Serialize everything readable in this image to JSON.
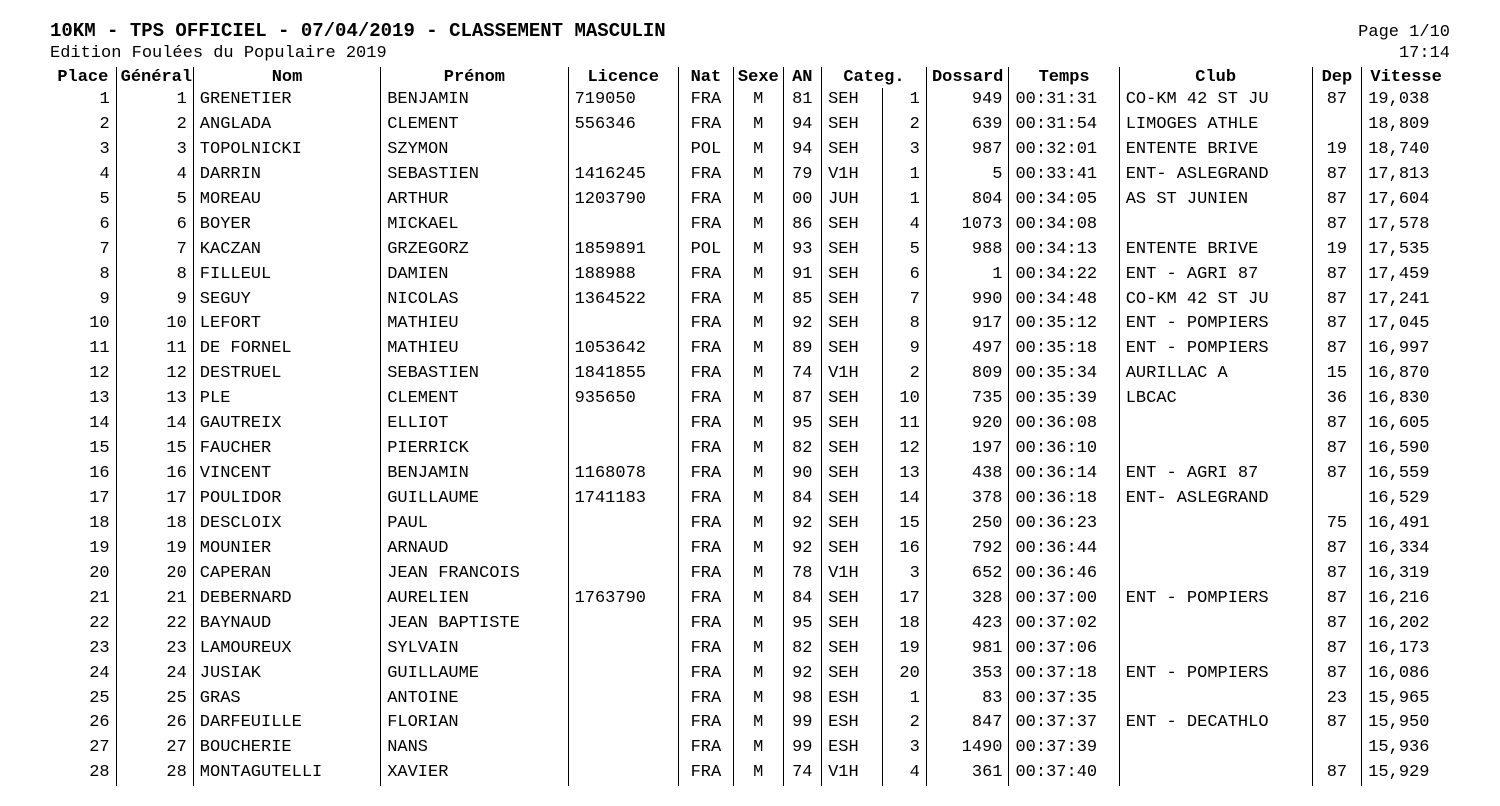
{
  "header": {
    "title": "10KM - TPS OFFICIEL - 07/04/2019 - CLASSEMENT MASCULIN",
    "subtitle": "Edition Foulées du Populaire 2019",
    "page": "Page 1/10",
    "time": "17:14"
  },
  "columns": [
    "Place",
    "Général",
    "Nom",
    "Prénom",
    "Licence",
    "Nat",
    "Sexe",
    "AN",
    "Categ.",
    "",
    "Dossard",
    "Temps",
    "Club",
    "Dep",
    "Vitesse"
  ],
  "rows": [
    {
      "place": 1,
      "general": 1,
      "nom": "GRENETIER",
      "prenom": "BENJAMIN",
      "licence": "719050",
      "nat": "FRA",
      "sexe": "M",
      "an": "81",
      "categ": "SEH",
      "catrank": 1,
      "dossard": 949,
      "temps": "00:31:31",
      "club": "CO-KM 42 ST JU",
      "dep": "87",
      "vitesse": "19,038"
    },
    {
      "place": 2,
      "general": 2,
      "nom": "ANGLADA",
      "prenom": "CLEMENT",
      "licence": "556346",
      "nat": "FRA",
      "sexe": "M",
      "an": "94",
      "categ": "SEH",
      "catrank": 2,
      "dossard": 639,
      "temps": "00:31:54",
      "club": "LIMOGES ATHLE",
      "dep": "",
      "vitesse": "18,809"
    },
    {
      "place": 3,
      "general": 3,
      "nom": "TOPOLNICKI",
      "prenom": "SZYMON",
      "licence": "",
      "nat": "POL",
      "sexe": "M",
      "an": "94",
      "categ": "SEH",
      "catrank": 3,
      "dossard": 987,
      "temps": "00:32:01",
      "club": "ENTENTE BRIVE",
      "dep": "19",
      "vitesse": "18,740"
    },
    {
      "place": 4,
      "general": 4,
      "nom": "DARRIN",
      "prenom": "SEBASTIEN",
      "licence": "1416245",
      "nat": "FRA",
      "sexe": "M",
      "an": "79",
      "categ": "V1H",
      "catrank": 1,
      "dossard": 5,
      "temps": "00:33:41",
      "club": "ENT- ASLEGRAND",
      "dep": "87",
      "vitesse": "17,813"
    },
    {
      "place": 5,
      "general": 5,
      "nom": "MOREAU",
      "prenom": "ARTHUR",
      "licence": "1203790",
      "nat": "FRA",
      "sexe": "M",
      "an": "00",
      "categ": "JUH",
      "catrank": 1,
      "dossard": 804,
      "temps": "00:34:05",
      "club": "AS ST JUNIEN",
      "dep": "87",
      "vitesse": "17,604"
    },
    {
      "place": 6,
      "general": 6,
      "nom": "BOYER",
      "prenom": "MICKAEL",
      "licence": "",
      "nat": "FRA",
      "sexe": "M",
      "an": "86",
      "categ": "SEH",
      "catrank": 4,
      "dossard": 1073,
      "temps": "00:34:08",
      "club": "",
      "dep": "87",
      "vitesse": "17,578"
    },
    {
      "place": 7,
      "general": 7,
      "nom": "KACZAN",
      "prenom": "GRZEGORZ",
      "licence": "1859891",
      "nat": "POL",
      "sexe": "M",
      "an": "93",
      "categ": "SEH",
      "catrank": 5,
      "dossard": 988,
      "temps": "00:34:13",
      "club": "ENTENTE BRIVE",
      "dep": "19",
      "vitesse": "17,535"
    },
    {
      "place": 8,
      "general": 8,
      "nom": "FILLEUL",
      "prenom": "DAMIEN",
      "licence": "188988",
      "nat": "FRA",
      "sexe": "M",
      "an": "91",
      "categ": "SEH",
      "catrank": 6,
      "dossard": 1,
      "temps": "00:34:22",
      "club": "ENT - AGRI 87",
      "dep": "87",
      "vitesse": "17,459"
    },
    {
      "place": 9,
      "general": 9,
      "nom": "SEGUY",
      "prenom": "NICOLAS",
      "licence": "1364522",
      "nat": "FRA",
      "sexe": "M",
      "an": "85",
      "categ": "SEH",
      "catrank": 7,
      "dossard": 990,
      "temps": "00:34:48",
      "club": "CO-KM 42 ST JU",
      "dep": "87",
      "vitesse": "17,241"
    },
    {
      "place": 10,
      "general": 10,
      "nom": "LEFORT",
      "prenom": "MATHIEU",
      "licence": "",
      "nat": "FRA",
      "sexe": "M",
      "an": "92",
      "categ": "SEH",
      "catrank": 8,
      "dossard": 917,
      "temps": "00:35:12",
      "club": "ENT - POMPIERS",
      "dep": "87",
      "vitesse": "17,045"
    },
    {
      "place": 11,
      "general": 11,
      "nom": "DE FORNEL",
      "prenom": "MATHIEU",
      "licence": "1053642",
      "nat": "FRA",
      "sexe": "M",
      "an": "89",
      "categ": "SEH",
      "catrank": 9,
      "dossard": 497,
      "temps": "00:35:18",
      "club": "ENT - POMPIERS",
      "dep": "87",
      "vitesse": "16,997"
    },
    {
      "place": 12,
      "general": 12,
      "nom": "DESTRUEL",
      "prenom": "SEBASTIEN",
      "licence": "1841855",
      "nat": "FRA",
      "sexe": "M",
      "an": "74",
      "categ": "V1H",
      "catrank": 2,
      "dossard": 809,
      "temps": "00:35:34",
      "club": "AURILLAC A",
      "dep": "15",
      "vitesse": "16,870"
    },
    {
      "place": 13,
      "general": 13,
      "nom": "PLE",
      "prenom": "CLEMENT",
      "licence": "935650",
      "nat": "FRA",
      "sexe": "M",
      "an": "87",
      "categ": "SEH",
      "catrank": 10,
      "dossard": 735,
      "temps": "00:35:39",
      "club": "LBCAC",
      "dep": "36",
      "vitesse": "16,830"
    },
    {
      "place": 14,
      "general": 14,
      "nom": "GAUTREIX",
      "prenom": "ELLIOT",
      "licence": "",
      "nat": "FRA",
      "sexe": "M",
      "an": "95",
      "categ": "SEH",
      "catrank": 11,
      "dossard": 920,
      "temps": "00:36:08",
      "club": "",
      "dep": "87",
      "vitesse": "16,605"
    },
    {
      "place": 15,
      "general": 15,
      "nom": "FAUCHER",
      "prenom": "PIERRICK",
      "licence": "",
      "nat": "FRA",
      "sexe": "M",
      "an": "82",
      "categ": "SEH",
      "catrank": 12,
      "dossard": 197,
      "temps": "00:36:10",
      "club": "",
      "dep": "87",
      "vitesse": "16,590"
    },
    {
      "place": 16,
      "general": 16,
      "nom": "VINCENT",
      "prenom": "BENJAMIN",
      "licence": "1168078",
      "nat": "FRA",
      "sexe": "M",
      "an": "90",
      "categ": "SEH",
      "catrank": 13,
      "dossard": 438,
      "temps": "00:36:14",
      "club": "ENT - AGRI 87",
      "dep": "87",
      "vitesse": "16,559"
    },
    {
      "place": 17,
      "general": 17,
      "nom": "POULIDOR",
      "prenom": "GUILLAUME",
      "licence": "1741183",
      "nat": "FRA",
      "sexe": "M",
      "an": "84",
      "categ": "SEH",
      "catrank": 14,
      "dossard": 378,
      "temps": "00:36:18",
      "club": "ENT- ASLEGRAND",
      "dep": "",
      "vitesse": "16,529"
    },
    {
      "place": 18,
      "general": 18,
      "nom": "DESCLOIX",
      "prenom": "PAUL",
      "licence": "",
      "nat": "FRA",
      "sexe": "M",
      "an": "92",
      "categ": "SEH",
      "catrank": 15,
      "dossard": 250,
      "temps": "00:36:23",
      "club": "",
      "dep": "75",
      "vitesse": "16,491"
    },
    {
      "place": 19,
      "general": 19,
      "nom": "MOUNIER",
      "prenom": "ARNAUD",
      "licence": "",
      "nat": "FRA",
      "sexe": "M",
      "an": "92",
      "categ": "SEH",
      "catrank": 16,
      "dossard": 792,
      "temps": "00:36:44",
      "club": "",
      "dep": "87",
      "vitesse": "16,334"
    },
    {
      "place": 20,
      "general": 20,
      "nom": "CAPERAN",
      "prenom": "JEAN FRANCOIS",
      "licence": "",
      "nat": "FRA",
      "sexe": "M",
      "an": "78",
      "categ": "V1H",
      "catrank": 3,
      "dossard": 652,
      "temps": "00:36:46",
      "club": "",
      "dep": "87",
      "vitesse": "16,319"
    },
    {
      "place": 21,
      "general": 21,
      "nom": "DEBERNARD",
      "prenom": "AURELIEN",
      "licence": "1763790",
      "nat": "FRA",
      "sexe": "M",
      "an": "84",
      "categ": "SEH",
      "catrank": 17,
      "dossard": 328,
      "temps": "00:37:00",
      "club": "ENT - POMPIERS",
      "dep": "87",
      "vitesse": "16,216"
    },
    {
      "place": 22,
      "general": 22,
      "nom": "BAYNAUD",
      "prenom": "JEAN BAPTISTE",
      "licence": "",
      "nat": "FRA",
      "sexe": "M",
      "an": "95",
      "categ": "SEH",
      "catrank": 18,
      "dossard": 423,
      "temps": "00:37:02",
      "club": "",
      "dep": "87",
      "vitesse": "16,202"
    },
    {
      "place": 23,
      "general": 23,
      "nom": "LAMOUREUX",
      "prenom": "SYLVAIN",
      "licence": "",
      "nat": "FRA",
      "sexe": "M",
      "an": "82",
      "categ": "SEH",
      "catrank": 19,
      "dossard": 981,
      "temps": "00:37:06",
      "club": "",
      "dep": "87",
      "vitesse": "16,173"
    },
    {
      "place": 24,
      "general": 24,
      "nom": "JUSIAK",
      "prenom": "GUILLAUME",
      "licence": "",
      "nat": "FRA",
      "sexe": "M",
      "an": "92",
      "categ": "SEH",
      "catrank": 20,
      "dossard": 353,
      "temps": "00:37:18",
      "club": "ENT - POMPIERS",
      "dep": "87",
      "vitesse": "16,086"
    },
    {
      "place": 25,
      "general": 25,
      "nom": "GRAS",
      "prenom": "ANTOINE",
      "licence": "",
      "nat": "FRA",
      "sexe": "M",
      "an": "98",
      "categ": "ESH",
      "catrank": 1,
      "dossard": 83,
      "temps": "00:37:35",
      "club": "",
      "dep": "23",
      "vitesse": "15,965"
    },
    {
      "place": 26,
      "general": 26,
      "nom": "DARFEUILLE",
      "prenom": "FLORIAN",
      "licence": "",
      "nat": "FRA",
      "sexe": "M",
      "an": "99",
      "categ": "ESH",
      "catrank": 2,
      "dossard": 847,
      "temps": "00:37:37",
      "club": "ENT - DECATHLO",
      "dep": "87",
      "vitesse": "15,950"
    },
    {
      "place": 27,
      "general": 27,
      "nom": "BOUCHERIE",
      "prenom": "NANS",
      "licence": "",
      "nat": "FRA",
      "sexe": "M",
      "an": "99",
      "categ": "ESH",
      "catrank": 3,
      "dossard": 1490,
      "temps": "00:37:39",
      "club": "",
      "dep": "",
      "vitesse": "15,936"
    },
    {
      "place": 28,
      "general": 28,
      "nom": "MONTAGUTELLI",
      "prenom": "XAVIER",
      "licence": "",
      "nat": "FRA",
      "sexe": "M",
      "an": "74",
      "categ": "V1H",
      "catrank": 4,
      "dossard": 361,
      "temps": "00:37:40",
      "club": "",
      "dep": "87",
      "vitesse": "15,929"
    }
  ]
}
